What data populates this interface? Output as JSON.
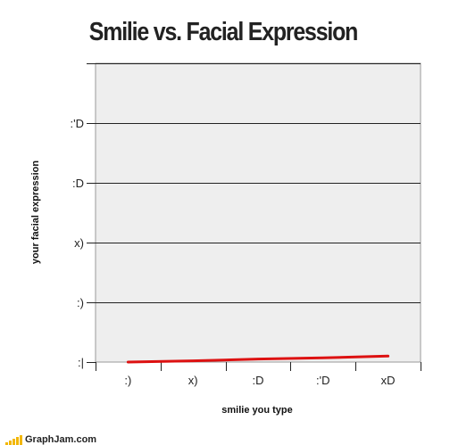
{
  "chart_data": {
    "type": "line",
    "title": "Smilie vs. Facial Expression",
    "xlabel": "smilie you type",
    "ylabel": "your facial expression",
    "categories": [
      ":)",
      "x)",
      ":D",
      ":'D",
      "xD"
    ],
    "y_ticks": [
      ":|",
      ":)",
      "x)",
      ":D",
      ":'D"
    ],
    "series": [
      {
        "values": [
          0,
          0.02,
          0.05,
          0.07,
          0.1
        ],
        "color": "#dd1111"
      }
    ],
    "ylim": [
      0,
      5
    ],
    "grid": true,
    "plot_background": "#eeeeee"
  },
  "watermark": {
    "text": "GraphJam.com"
  }
}
